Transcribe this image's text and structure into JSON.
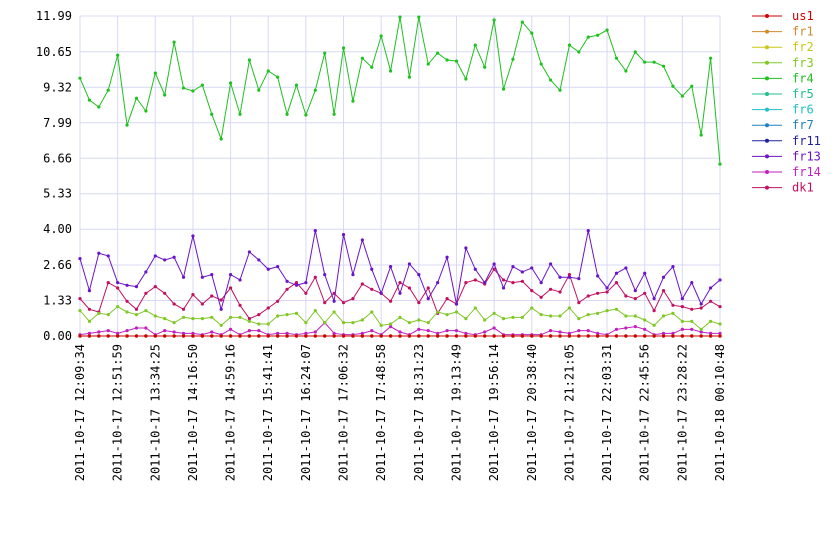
{
  "chart_data": {
    "type": "line",
    "categories": [
      "2011-10-17 12:09:34",
      null,
      null,
      null,
      "2011-10-17 12:51:59",
      null,
      null,
      null,
      "2011-10-17 13:34:25",
      null,
      null,
      null,
      "2011-10-17 14:16:50",
      null,
      null,
      null,
      "2011-10-17 14:59:16",
      null,
      null,
      null,
      "2011-10-17 15:41:41",
      null,
      null,
      null,
      "2011-10-17 16:24:07",
      null,
      null,
      null,
      "2011-10-17 17:06:32",
      null,
      null,
      null,
      "2011-10-17 17:48:58",
      null,
      null,
      null,
      "2011-10-17 18:31:23",
      null,
      null,
      null,
      "2011-10-17 19:13:49",
      null,
      null,
      null,
      "2011-10-17 19:56:14",
      null,
      null,
      null,
      "2011-10-17 20:38:40",
      null,
      null,
      null,
      "2011-10-17 21:21:05",
      null,
      null,
      null,
      "2011-10-17 22:03:31",
      null,
      null,
      null,
      "2011-10-17 22:45:56",
      null,
      null,
      null,
      "2011-10-17 23:28:22",
      null,
      null,
      null,
      "2011-10-18 00:10:48"
    ],
    "ylim": [
      0,
      11.99
    ],
    "yticks": [
      {
        "value": 0,
        "label": "0.00"
      },
      1.33,
      2.66,
      {
        "value": 4,
        "label": "4.00"
      },
      5.33,
      6.66,
      7.99,
      9.32,
      10.65,
      11.99
    ],
    "grid": true,
    "legend": "right",
    "series": [
      {
        "name": "us1",
        "color": "#cc0000",
        "values": [
          0,
          0,
          0,
          0,
          0,
          0,
          0,
          0,
          0,
          0,
          0,
          0,
          0,
          0,
          0,
          0,
          0,
          0,
          0,
          0,
          0,
          0,
          0,
          0,
          0,
          0,
          0,
          0,
          0,
          0,
          0,
          0,
          0,
          0,
          0,
          0,
          0,
          0,
          0,
          0,
          0,
          0,
          0,
          0,
          0,
          0,
          0,
          0,
          0,
          0,
          0,
          0,
          0,
          0,
          0,
          0,
          0,
          0,
          0,
          0,
          0,
          0,
          0,
          0,
          0,
          0,
          0,
          0,
          0
        ]
      },
      {
        "name": "fr1",
        "color": "#d08a2a",
        "values": [
          0,
          0,
          0,
          0,
          0,
          0,
          0,
          0,
          0,
          0,
          0,
          0,
          0,
          0,
          0,
          0,
          0,
          0,
          0,
          0,
          0,
          0,
          0,
          0,
          0,
          0,
          0,
          0,
          0,
          0,
          0,
          0,
          0,
          0,
          0,
          0,
          0,
          0,
          0,
          0,
          0,
          0,
          0,
          0,
          0,
          0,
          0,
          0,
          0,
          0,
          0,
          0,
          0,
          0,
          0,
          0,
          0,
          0,
          0,
          0,
          0,
          0,
          0,
          0,
          0,
          0,
          0,
          0,
          0
        ]
      },
      {
        "name": "fr2",
        "color": "#c8c81a",
        "values": [
          0,
          0,
          0,
          0,
          0,
          0,
          0,
          0,
          0,
          0,
          0,
          0,
          0,
          0,
          0,
          0,
          0,
          0,
          0,
          0,
          0,
          0,
          0,
          0,
          0,
          0,
          0,
          0,
          0,
          0,
          0,
          0,
          0,
          0,
          0,
          0,
          0,
          0,
          0,
          0,
          0,
          0,
          0,
          0,
          0,
          0,
          0,
          0,
          0,
          0,
          0,
          0,
          0,
          0,
          0,
          0,
          0,
          0,
          0,
          0,
          0,
          0,
          0,
          0,
          0,
          0,
          0,
          0,
          0
        ]
      },
      {
        "name": "fr3",
        "color": "#80c828",
        "values": [
          0.95,
          0.55,
          0.85,
          0.8,
          1.1,
          0.9,
          0.8,
          0.95,
          0.75,
          0.65,
          0.5,
          0.7,
          0.65,
          0.65,
          0.7,
          0.4,
          0.7,
          0.7,
          0.55,
          0.45,
          0.45,
          0.75,
          0.8,
          0.85,
          0.5,
          0.95,
          0.5,
          0.9,
          0.5,
          0.5,
          0.6,
          0.9,
          0.4,
          0.45,
          0.7,
          0.5,
          0.6,
          0.5,
          0.9,
          0.8,
          0.9,
          0.65,
          1.05,
          0.6,
          0.85,
          0.65,
          0.7,
          0.7,
          1.05,
          0.8,
          0.75,
          0.75,
          1.05,
          0.65,
          0.8,
          0.85,
          0.95,
          1.0,
          0.75,
          0.75,
          0.6,
          0.4,
          0.75,
          0.85,
          0.55,
          0.55,
          0.25,
          0.55,
          0.45
        ]
      },
      {
        "name": "fr4",
        "color": "#20c020",
        "values": [
          9.66,
          8.84,
          8.58,
          9.21,
          10.52,
          7.9,
          8.91,
          8.43,
          9.85,
          9.03,
          11.01,
          9.29,
          9.18,
          9.4,
          8.31,
          7.38,
          9.48,
          8.31,
          10.34,
          9.21,
          9.93,
          9.7,
          8.31,
          9.4,
          8.28,
          9.21,
          10.6,
          8.31,
          10.79,
          8.8,
          10.41,
          10.07,
          11.24,
          9.93,
          11.95,
          9.7,
          11.95,
          10.19,
          10.6,
          10.34,
          10.3,
          9.63,
          10.9,
          10.07,
          11.84,
          9.25,
          10.37,
          11.76,
          11.35,
          10.19,
          9.59,
          9.21,
          10.9,
          10.64,
          11.2,
          11.27,
          11.46,
          10.41,
          9.93,
          10.64,
          10.26,
          10.26,
          10.11,
          9.36,
          8.99,
          9.36,
          7.53,
          10.41,
          6.44
        ]
      },
      {
        "name": "fr5",
        "color": "#20c088",
        "values": [
          0,
          0,
          0,
          0,
          0,
          0,
          0,
          0,
          0,
          0,
          0,
          0,
          0,
          0,
          0,
          0,
          0,
          0,
          0,
          0,
          0,
          0,
          0,
          0,
          0,
          0,
          0,
          0,
          0,
          0,
          0,
          0,
          0,
          0,
          0,
          0,
          0,
          0,
          0,
          0,
          0,
          0,
          0,
          0,
          0,
          0,
          0,
          0,
          0,
          0,
          0,
          0,
          0,
          0,
          0,
          0,
          0,
          0,
          0,
          0,
          0,
          0,
          0,
          0,
          0,
          0,
          0,
          0,
          0
        ]
      },
      {
        "name": "fr6",
        "color": "#20c0c0",
        "values": [
          0,
          0,
          0,
          0,
          0,
          0,
          0,
          0,
          0,
          0,
          0,
          0,
          0,
          0,
          0,
          0,
          0,
          0,
          0,
          0,
          0,
          0,
          0,
          0,
          0,
          0,
          0,
          0,
          0,
          0,
          0,
          0,
          0,
          0,
          0,
          0,
          0,
          0,
          0,
          0,
          0,
          0,
          0,
          0,
          0,
          0,
          0,
          0,
          0,
          0,
          0,
          0,
          0,
          0,
          0,
          0,
          0,
          0,
          0,
          0,
          0,
          0,
          0,
          0,
          0,
          0,
          0,
          0,
          0
        ]
      },
      {
        "name": "fr7",
        "color": "#2080c0",
        "values": [
          0,
          0,
          0,
          0,
          0,
          0,
          0,
          0,
          0,
          0,
          0,
          0,
          0,
          0,
          0,
          0,
          0,
          0,
          0,
          0,
          0,
          0,
          0,
          0,
          0,
          0,
          0,
          0,
          0,
          0,
          0,
          0,
          0,
          0,
          0,
          0,
          0,
          0,
          0,
          0,
          0,
          0,
          0,
          0,
          0,
          0,
          0,
          0,
          0,
          0,
          0,
          0,
          0,
          0,
          0,
          0,
          0,
          0,
          0,
          0,
          0,
          0,
          0,
          0,
          0,
          0,
          0,
          0,
          0
        ]
      },
      {
        "name": "fr11",
        "color": "#2020a0",
        "values": [
          0,
          0,
          0,
          0,
          0,
          0,
          0,
          0,
          0,
          0,
          0,
          0,
          0,
          0,
          0,
          0,
          0,
          0,
          0,
          0,
          0,
          0,
          0,
          0,
          0,
          0,
          0,
          0,
          0,
          0,
          0,
          0,
          0,
          0,
          0,
          0,
          0,
          0,
          0,
          0,
          0,
          0,
          0,
          0,
          0,
          0,
          0,
          0,
          0,
          0,
          0,
          0,
          0,
          0,
          0,
          0,
          0,
          0,
          0,
          0,
          0,
          0,
          0,
          0,
          0,
          0,
          0,
          0,
          0
        ]
      },
      {
        "name": "fr13",
        "color": "#6a14c8",
        "values": [
          2.9,
          1.7,
          3.1,
          3.0,
          2.0,
          1.9,
          1.85,
          2.4,
          3.0,
          2.85,
          2.95,
          2.2,
          3.75,
          2.2,
          2.3,
          1.0,
          2.3,
          2.1,
          3.15,
          2.85,
          2.5,
          2.6,
          2.05,
          1.9,
          2.0,
          3.95,
          2.3,
          1.3,
          3.8,
          2.3,
          3.6,
          2.5,
          1.6,
          2.6,
          1.6,
          2.7,
          2.3,
          1.4,
          2.0,
          2.95,
          1.2,
          3.3,
          2.5,
          2.0,
          2.7,
          1.8,
          2.6,
          2.4,
          2.55,
          2.0,
          2.7,
          2.2,
          2.2,
          2.15,
          3.95,
          2.25,
          1.8,
          2.35,
          2.55,
          1.7,
          2.35,
          1.4,
          2.2,
          2.6,
          1.4,
          2.0,
          1.2,
          1.8,
          2.1
        ]
      },
      {
        "name": "fr14",
        "color": "#c020c0",
        "values": [
          0.05,
          0.1,
          0.15,
          0.2,
          0.1,
          0.2,
          0.3,
          0.3,
          0.05,
          0.2,
          0.15,
          0.1,
          0.1,
          0.05,
          0.15,
          0.05,
          0.25,
          0.05,
          0.2,
          0.2,
          0.05,
          0.1,
          0.1,
          0.05,
          0.1,
          0.15,
          0.5,
          0.1,
          0.05,
          0.05,
          0.1,
          0.2,
          0.05,
          0.35,
          0.15,
          0.05,
          0.25,
          0.2,
          0.1,
          0.2,
          0.2,
          0.1,
          0.05,
          0.15,
          0.3,
          0.05,
          0.05,
          0.05,
          0.05,
          0.05,
          0.2,
          0.15,
          0.1,
          0.2,
          0.2,
          0.1,
          0.05,
          0.25,
          0.3,
          0.35,
          0.25,
          0.05,
          0.1,
          0.1,
          0.25,
          0.25,
          0.15,
          0.1,
          0.1
        ]
      },
      {
        "name": "dk1",
        "color": "#c01060",
        "values": [
          1.4,
          1.0,
          0.9,
          2.0,
          1.8,
          1.3,
          1.0,
          1.6,
          1.85,
          1.6,
          1.2,
          1.0,
          1.55,
          1.2,
          1.5,
          1.35,
          1.8,
          1.15,
          0.65,
          0.8,
          1.05,
          1.3,
          1.75,
          2.0,
          1.6,
          2.2,
          1.25,
          1.6,
          1.25,
          1.4,
          1.95,
          1.75,
          1.6,
          1.3,
          2.0,
          1.8,
          1.25,
          1.8,
          0.85,
          1.4,
          1.2,
          2.0,
          2.1,
          1.95,
          2.5,
          2.1,
          2.0,
          2.05,
          1.7,
          1.45,
          1.75,
          1.65,
          2.3,
          1.25,
          1.5,
          1.6,
          1.65,
          2.0,
          1.5,
          1.4,
          1.6,
          0.95,
          1.7,
          1.15,
          1.1,
          1.0,
          1.05,
          1.3,
          1.1
        ]
      }
    ]
  }
}
